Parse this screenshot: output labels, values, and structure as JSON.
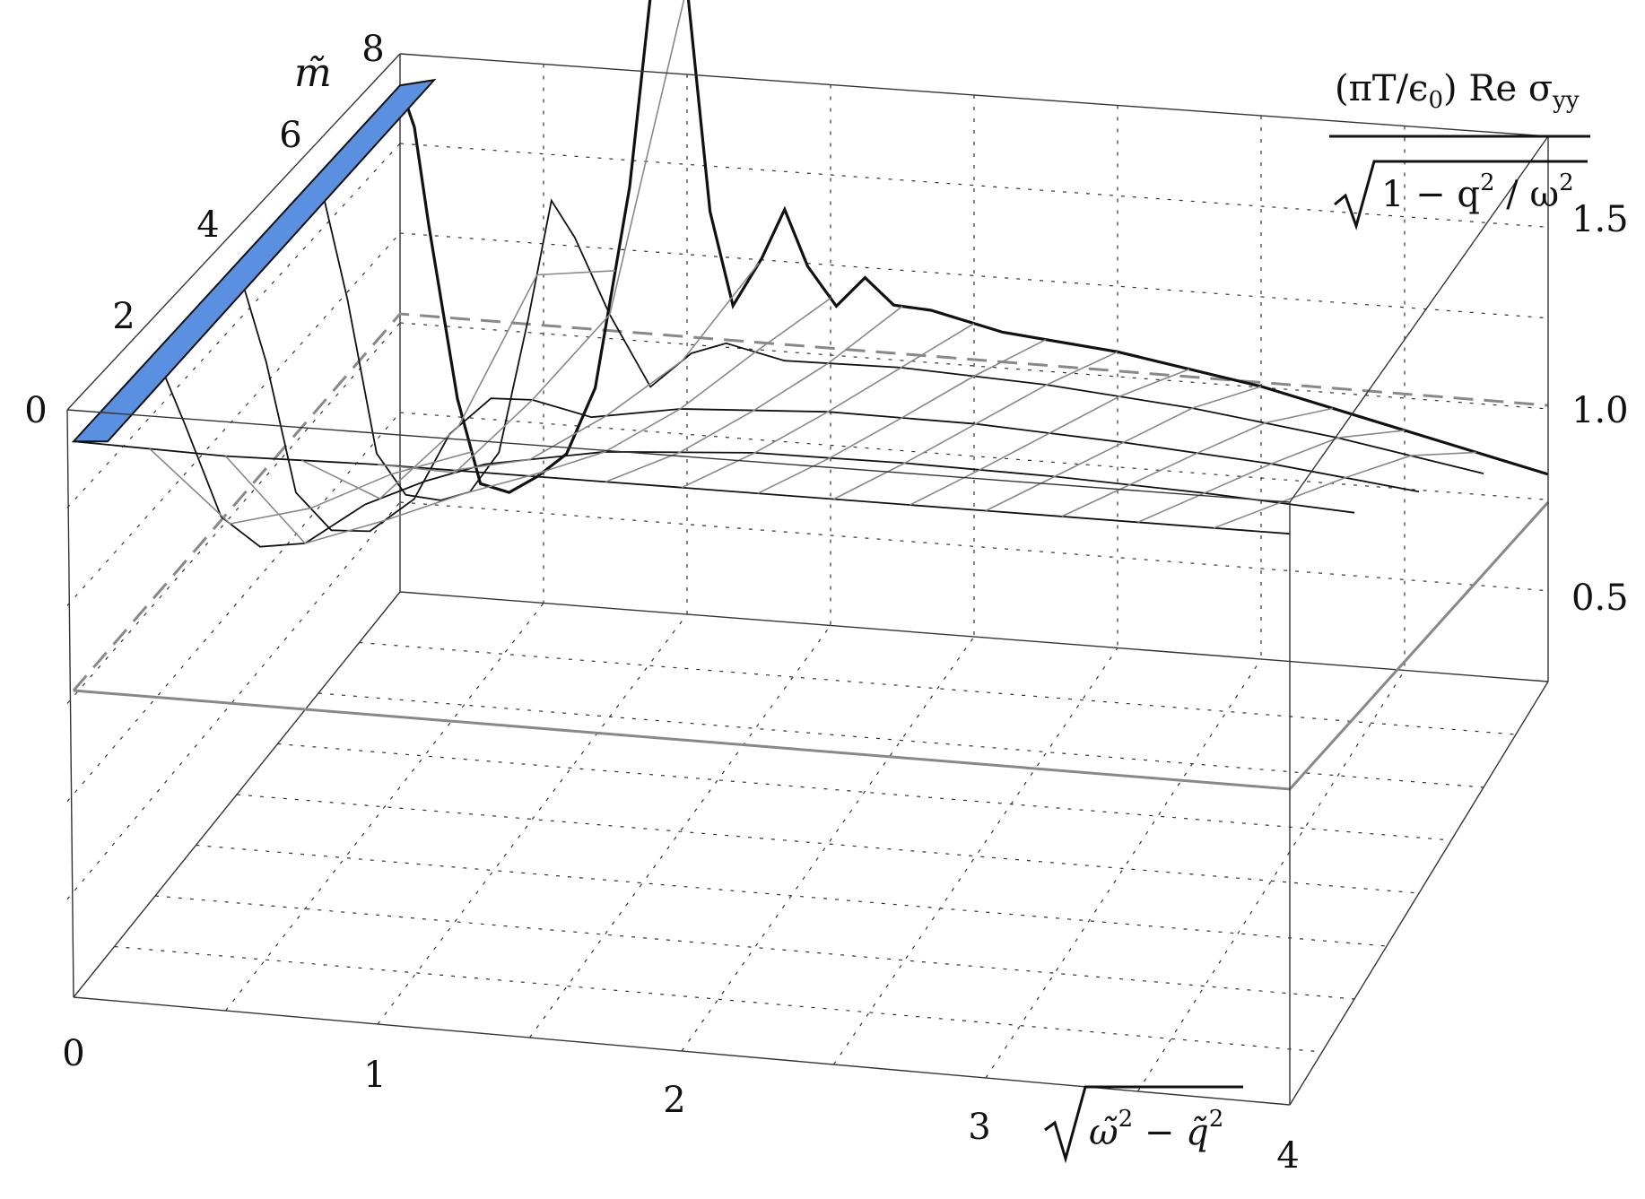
{
  "chart_data": {
    "type": "surface3d",
    "title": "",
    "xlabel": "√(ω̃² − q̃²)",
    "xlabel_parts": {
      "radical": "√",
      "a": "ω̃",
      "sup": "2",
      "op": " − ",
      "b": "q̃",
      "sup2": "2"
    },
    "ylabel": "m̃",
    "zlabel": "(πT/ε₀) Re σ_yy / √(1 − q²/ω²)",
    "zlabel_parts": {
      "numerator": "(πT/ϵ",
      "numerator_sub": "0",
      "numerator_rest": ") Re σ",
      "numerator_sub2": "yy",
      "denominator": "1 − q",
      "den_sup": "2",
      "den_rest": " / ω",
      "den_sup2": "2"
    },
    "x_ticks": [
      "0",
      "1",
      "2",
      "3",
      "4"
    ],
    "y_ticks": [
      "0",
      "2",
      "4",
      "6",
      "8"
    ],
    "z_ticks": [
      "0.5",
      "1.0",
      "1.5"
    ],
    "xlim": [
      0,
      4
    ],
    "ylim": [
      0,
      8
    ],
    "zlim": [
      0,
      1.75
    ],
    "grid": true,
    "colors": {
      "surface_fill": "#f0f0f0",
      "surface_edge": "#111111",
      "mesh_gray": "#888888",
      "plane": "#888888",
      "highlight": "#5b8fe0",
      "box": "#333333"
    },
    "series": [
      {
        "m": 8.0,
        "curve": [
          [
            0,
            1.0
          ],
          [
            0.05,
            0.88
          ],
          [
            0.1,
            0.58
          ],
          [
            0.2,
            0.05
          ],
          [
            0.28,
            -0.2
          ],
          [
            0.38,
            -0.2
          ],
          [
            0.48,
            -0.12
          ],
          [
            0.58,
            -0.02
          ],
          [
            0.68,
            0.22
          ],
          [
            0.8,
            0.9
          ],
          [
            0.88,
            1.6
          ],
          [
            0.93,
            1.98
          ],
          [
            1.0,
            1.6
          ],
          [
            1.08,
            0.9
          ],
          [
            1.16,
            0.62
          ],
          [
            1.26,
            0.8
          ],
          [
            1.34,
            0.98
          ],
          [
            1.42,
            0.82
          ],
          [
            1.52,
            0.72
          ],
          [
            1.62,
            0.84
          ],
          [
            1.72,
            0.78
          ],
          [
            1.85,
            0.8
          ],
          [
            2.1,
            0.8
          ],
          [
            2.5,
            0.85
          ],
          [
            3.0,
            0.88
          ],
          [
            3.5,
            0.88
          ],
          [
            4.0,
            0.88
          ]
        ]
      },
      {
        "m": 6.0,
        "curve": [
          [
            0,
            1.0
          ],
          [
            0.1,
            0.62
          ],
          [
            0.2,
            0.15
          ],
          [
            0.3,
            0.04
          ],
          [
            0.42,
            0.05
          ],
          [
            0.52,
            0.1
          ],
          [
            0.62,
            0.25
          ],
          [
            0.72,
            0.7
          ],
          [
            0.8,
            1.1
          ],
          [
            0.88,
            1.0
          ],
          [
            1.0,
            0.78
          ],
          [
            1.14,
            0.58
          ],
          [
            1.28,
            0.72
          ],
          [
            1.4,
            0.78
          ],
          [
            1.6,
            0.77
          ],
          [
            2.0,
            0.84
          ],
          [
            2.5,
            0.9
          ],
          [
            3.0,
            0.94
          ],
          [
            3.5,
            0.96
          ],
          [
            4.0,
            0.96
          ]
        ]
      },
      {
        "m": 4.0,
        "curve": [
          [
            0,
            1.0
          ],
          [
            0.1,
            0.7
          ],
          [
            0.2,
            0.3
          ],
          [
            0.32,
            0.2
          ],
          [
            0.45,
            0.22
          ],
          [
            0.6,
            0.35
          ],
          [
            0.72,
            0.58
          ],
          [
            0.86,
            0.72
          ],
          [
            1.0,
            0.74
          ],
          [
            1.2,
            0.72
          ],
          [
            1.5,
            0.8
          ],
          [
            2.0,
            0.88
          ],
          [
            2.5,
            0.93
          ],
          [
            3.0,
            0.96
          ],
          [
            3.5,
            0.98
          ],
          [
            4.0,
            0.98
          ]
        ]
      },
      {
        "m": 2.0,
        "curve": [
          [
            0,
            1.0
          ],
          [
            0.1,
            0.78
          ],
          [
            0.22,
            0.5
          ],
          [
            0.35,
            0.42
          ],
          [
            0.5,
            0.45
          ],
          [
            0.7,
            0.6
          ],
          [
            0.9,
            0.7
          ],
          [
            1.1,
            0.78
          ],
          [
            1.5,
            0.87
          ],
          [
            2.0,
            0.93
          ],
          [
            2.5,
            0.96
          ],
          [
            3.0,
            0.98
          ],
          [
            3.5,
            0.99
          ],
          [
            4.0,
            0.99
          ]
        ]
      },
      {
        "m": 0.0,
        "curve": [
          [
            0,
            1.0
          ],
          [
            0.5,
            0.99
          ],
          [
            1.0,
            1.0
          ],
          [
            2.0,
            1.0
          ],
          [
            3.0,
            1.0
          ],
          [
            4.0,
            1.0
          ]
        ]
      }
    ]
  }
}
